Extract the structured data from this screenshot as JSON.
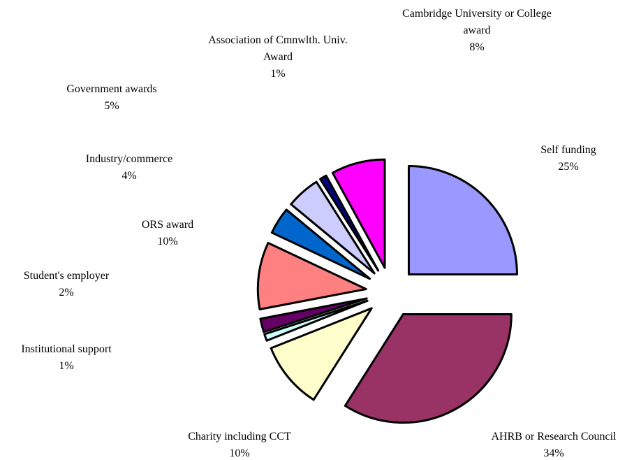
{
  "chart_data": {
    "type": "pie",
    "categories": [
      "Self funding",
      "AHRB or Research Council",
      "Charity including CCT",
      "Institutional support",
      "Student's employer",
      "ORS award",
      "Industry/commerce",
      "Government awards",
      "Association of Cmnwlth. Univ. Award",
      "Cambridge University or College award"
    ],
    "values": [
      25,
      34,
      10,
      1,
      2,
      10,
      4,
      5,
      1,
      8
    ],
    "value_labels": [
      "25%",
      "34%",
      "10%",
      "1%",
      "2%",
      "10%",
      "4%",
      "5%",
      "1%",
      "8%"
    ],
    "colors": [
      "#9999ff",
      "#993366",
      "#ffffcc",
      "#ccffff",
      "#660066",
      "#ff8080",
      "#0066cc",
      "#ccccff",
      "#000080",
      "#ff00ff"
    ]
  }
}
